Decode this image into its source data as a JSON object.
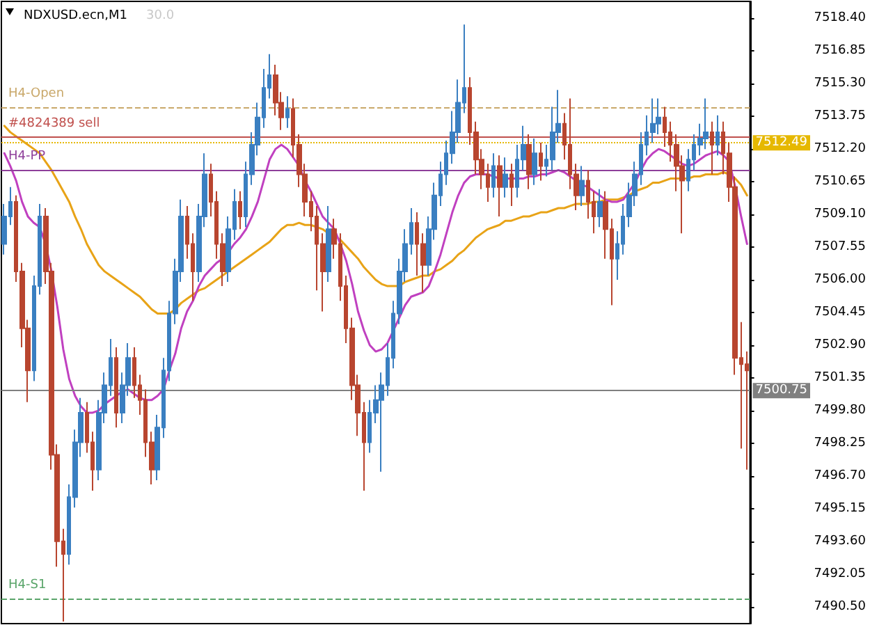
{
  "chart_data": {
    "type": "candlestick",
    "title": "NDXUSD.ecn,M1",
    "subtitle": "30.0",
    "categories": [
      null,
      null,
      null,
      null,
      null,
      null,
      null,
      null,
      null,
      null,
      null,
      null,
      null,
      null,
      null,
      null,
      null,
      null,
      null,
      null,
      null,
      null,
      null,
      null,
      null,
      null,
      null,
      null,
      null,
      null,
      null,
      null,
      null,
      null,
      null,
      null,
      null,
      null,
      null,
      null,
      null,
      null,
      null,
      null,
      null,
      null,
      null,
      null,
      null,
      null,
      null,
      null,
      null,
      null,
      null,
      null,
      null,
      null,
      null,
      null,
      null,
      null,
      null,
      null,
      null,
      null,
      null,
      null,
      null,
      null,
      null,
      null,
      null,
      null,
      null,
      null,
      null,
      null,
      null,
      null,
      null,
      null,
      null,
      null,
      null,
      null,
      null,
      null,
      null,
      null,
      null,
      null,
      null,
      null,
      null,
      null,
      null,
      null,
      null,
      null,
      null,
      null,
      null,
      null,
      null,
      null,
      null,
      null,
      null,
      null,
      null,
      null,
      null,
      null,
      null,
      null,
      null,
      null,
      null,
      null,
      null,
      null,
      null,
      null,
      null,
      null,
      null
    ],
    "ohlc": [
      [
        7507.7,
        7509.6,
        7507.2,
        7509.0
      ],
      [
        7509.0,
        7510.4,
        7508.6,
        7509.7
      ],
      [
        7509.7,
        7510.0,
        7505.9,
        7506.4
      ],
      [
        7506.4,
        7506.8,
        7502.8,
        7503.7
      ],
      [
        7503.7,
        7504.1,
        7500.2,
        7501.7
      ],
      [
        7501.7,
        7506.2,
        7501.2,
        7505.7
      ],
      [
        7505.7,
        7509.6,
        7505.3,
        7509.0
      ],
      [
        7509.0,
        7509.4,
        7505.8,
        7506.4
      ],
      [
        7506.4,
        7506.8,
        7497.0,
        7497.7
      ],
      [
        7497.7,
        7498.2,
        7492.4,
        7493.6
      ],
      [
        7493.6,
        7494.2,
        7489.8,
        7493.0
      ],
      [
        7493.0,
        7496.3,
        7492.5,
        7495.7
      ],
      [
        7495.7,
        7498.9,
        7495.2,
        7498.3
      ],
      [
        7498.3,
        7500.4,
        7497.6,
        7499.7
      ],
      [
        7499.7,
        7500.2,
        7497.8,
        7498.3
      ],
      [
        7498.3,
        7498.8,
        7496.0,
        7497.0
      ],
      [
        7497.0,
        7500.3,
        7496.5,
        7499.7
      ],
      [
        7499.7,
        7501.6,
        7499.2,
        7501.0
      ],
      [
        7501.0,
        7503.2,
        7500.5,
        7502.3
      ],
      [
        7502.3,
        7502.8,
        7499.0,
        7499.7
      ],
      [
        7499.7,
        7501.6,
        7499.2,
        7501.0
      ],
      [
        7501.0,
        7503.0,
        7500.5,
        7502.3
      ],
      [
        7502.3,
        7502.8,
        7500.4,
        7501.0
      ],
      [
        7501.0,
        7501.5,
        7499.6,
        7500.3
      ],
      [
        7500.3,
        7500.8,
        7497.6,
        7498.3
      ],
      [
        7498.3,
        7498.8,
        7496.3,
        7497.0
      ],
      [
        7497.0,
        7499.6,
        7496.5,
        7499.0
      ],
      [
        7499.0,
        7502.3,
        7498.5,
        7501.7
      ],
      [
        7501.7,
        7505.0,
        7501.2,
        7504.4
      ],
      [
        7504.4,
        7507.0,
        7503.9,
        7506.4
      ],
      [
        7506.4,
        7509.8,
        7505.9,
        7509.0
      ],
      [
        7509.0,
        7509.5,
        7507.0,
        7507.7
      ],
      [
        7507.7,
        7508.2,
        7505.0,
        7506.4
      ],
      [
        7506.4,
        7509.6,
        7505.9,
        7509.0
      ],
      [
        7509.0,
        7512.0,
        7508.5,
        7511.0
      ],
      [
        7511.0,
        7511.5,
        7509.0,
        7509.7
      ],
      [
        7509.7,
        7510.2,
        7507.0,
        7507.7
      ],
      [
        7507.7,
        7508.2,
        7505.7,
        7506.4
      ],
      [
        7506.4,
        7509.0,
        7505.9,
        7508.4
      ],
      [
        7508.4,
        7510.3,
        7507.9,
        7509.7
      ],
      [
        7509.7,
        7510.2,
        7508.4,
        7509.0
      ],
      [
        7509.0,
        7511.6,
        7508.5,
        7511.0
      ],
      [
        7511.0,
        7513.0,
        7510.5,
        7512.4
      ],
      [
        7512.4,
        7514.4,
        7511.9,
        7513.7
      ],
      [
        7513.7,
        7516.0,
        7513.2,
        7515.1
      ],
      [
        7515.1,
        7516.7,
        7514.6,
        7515.7
      ],
      [
        7515.7,
        7516.2,
        7513.8,
        7514.4
      ],
      [
        7514.4,
        7514.9,
        7513.1,
        7513.7
      ],
      [
        7513.7,
        7514.7,
        7513.2,
        7514.1
      ],
      [
        7514.1,
        7514.6,
        7511.8,
        7512.4
      ],
      [
        7512.4,
        7512.9,
        7510.4,
        7511.0
      ],
      [
        7511.0,
        7511.5,
        7509.0,
        7509.7
      ],
      [
        7509.7,
        7510.2,
        7508.3,
        7509.0
      ],
      [
        7509.0,
        7509.5,
        7505.5,
        7507.7
      ],
      [
        7507.7,
        7508.2,
        7504.5,
        7506.4
      ],
      [
        7506.4,
        7509.5,
        7505.9,
        7508.4
      ],
      [
        7508.4,
        7508.9,
        7507.0,
        7507.7
      ],
      [
        7507.7,
        7508.2,
        7505.0,
        7505.7
      ],
      [
        7505.7,
        7506.2,
        7503.0,
        7503.7
      ],
      [
        7503.7,
        7504.2,
        7500.3,
        7501.0
      ],
      [
        7501.0,
        7501.5,
        7498.6,
        7499.7
      ],
      [
        7499.7,
        7500.2,
        7496.0,
        7498.3
      ],
      [
        7498.3,
        7500.3,
        7497.8,
        7499.7
      ],
      [
        7499.7,
        7501.0,
        7499.2,
        7500.3
      ],
      [
        7500.3,
        7501.6,
        7496.9,
        7501.0
      ],
      [
        7501.0,
        7503.0,
        7500.5,
        7502.3
      ],
      [
        7502.3,
        7505.0,
        7501.8,
        7504.4
      ],
      [
        7504.4,
        7507.0,
        7503.9,
        7506.4
      ],
      [
        7506.4,
        7508.4,
        7505.9,
        7507.7
      ],
      [
        7507.7,
        7509.4,
        7507.2,
        7508.7
      ],
      [
        7508.7,
        7509.2,
        7506.2,
        7507.7
      ],
      [
        7507.7,
        7508.2,
        7505.4,
        7506.7
      ],
      [
        7506.7,
        7509.0,
        7506.2,
        7508.4
      ],
      [
        7508.4,
        7510.6,
        7507.9,
        7510.0
      ],
      [
        7510.0,
        7511.6,
        7509.5,
        7511.0
      ],
      [
        7511.0,
        7512.6,
        7510.5,
        7512.0
      ],
      [
        7512.0,
        7514.0,
        7511.5,
        7513.0
      ],
      [
        7513.0,
        7515.5,
        7512.5,
        7514.4
      ],
      [
        7514.4,
        7518.1,
        7513.9,
        7515.1
      ],
      [
        7515.1,
        7515.6,
        7512.4,
        7513.0
      ],
      [
        7513.0,
        7513.5,
        7511.0,
        7511.7
      ],
      [
        7511.7,
        7512.2,
        7510.3,
        7511.0
      ],
      [
        7511.0,
        7511.5,
        7509.7,
        7510.4
      ],
      [
        7510.4,
        7512.0,
        7509.9,
        7511.4
      ],
      [
        7511.4,
        7511.9,
        7509.0,
        7510.4
      ],
      [
        7510.4,
        7511.8,
        7509.9,
        7511.0
      ],
      [
        7511.0,
        7511.5,
        7509.5,
        7510.4
      ],
      [
        7510.4,
        7512.4,
        7509.9,
        7511.7
      ],
      [
        7511.7,
        7513.3,
        7511.2,
        7512.4
      ],
      [
        7512.4,
        7512.9,
        7510.3,
        7511.0
      ],
      [
        7511.0,
        7512.7,
        7510.5,
        7512.0
      ],
      [
        7512.0,
        7512.5,
        7510.7,
        7511.4
      ],
      [
        7511.4,
        7512.4,
        7510.9,
        7511.7
      ],
      [
        7511.7,
        7514.2,
        7511.2,
        7513.0
      ],
      [
        7513.0,
        7515.0,
        7512.5,
        7513.4
      ],
      [
        7513.4,
        7513.9,
        7511.7,
        7512.4
      ],
      [
        7512.4,
        7514.6,
        7510.3,
        7511.0
      ],
      [
        7511.0,
        7511.5,
        7509.3,
        7510.0
      ],
      [
        7510.0,
        7511.4,
        7509.5,
        7510.7
      ],
      [
        7510.7,
        7511.2,
        7508.9,
        7509.7
      ],
      [
        7509.7,
        7510.2,
        7508.2,
        7509.0
      ],
      [
        7509.0,
        7510.3,
        7508.5,
        7509.7
      ],
      [
        7509.7,
        7510.2,
        7507.0,
        7508.4
      ],
      [
        7508.4,
        7508.9,
        7504.8,
        7507.0
      ],
      [
        7507.0,
        7508.3,
        7506.0,
        7507.7
      ],
      [
        7507.7,
        7509.6,
        7507.2,
        7509.0
      ],
      [
        7509.0,
        7510.6,
        7508.5,
        7510.0
      ],
      [
        7510.0,
        7511.6,
        7509.5,
        7511.0
      ],
      [
        7511.0,
        7513.0,
        7510.5,
        7512.4
      ],
      [
        7512.4,
        7513.8,
        7511.9,
        7513.0
      ],
      [
        7513.0,
        7514.6,
        7512.5,
        7513.4
      ],
      [
        7513.4,
        7514.6,
        7512.9,
        7513.7
      ],
      [
        7513.7,
        7514.2,
        7512.3,
        7513.0
      ],
      [
        7513.0,
        7513.5,
        7511.6,
        7512.4
      ],
      [
        7512.4,
        7512.9,
        7510.2,
        7511.4
      ],
      [
        7511.4,
        7511.9,
        7508.2,
        7510.7
      ],
      [
        7510.7,
        7512.2,
        7510.2,
        7511.7
      ],
      [
        7511.7,
        7512.9,
        7511.2,
        7512.4
      ],
      [
        7512.4,
        7513.4,
        7511.9,
        7512.7
      ],
      [
        7512.7,
        7514.6,
        7512.2,
        7513.0
      ],
      [
        7513.0,
        7513.5,
        7511.0,
        7512.4
      ],
      [
        7512.4,
        7513.8,
        7511.9,
        7513.0
      ],
      [
        7513.0,
        7513.5,
        7511.0,
        7512.0
      ],
      [
        7512.0,
        7512.5,
        7509.7,
        7510.4
      ],
      [
        7510.4,
        7510.9,
        7501.5,
        7502.3
      ],
      [
        7502.3,
        7504.0,
        7498.0,
        7502.0
      ],
      [
        7502.0,
        7502.6,
        7497.0,
        7501.7
      ]
    ],
    "colors": [
      "#3a7fc1",
      "#3a7fc1",
      "#b8452f",
      "#b8452f",
      "#b8452f",
      "#3a7fc1",
      "#3a7fc1",
      "#b8452f",
      "#b8452f",
      "#b8452f",
      "#b8452f",
      "#3a7fc1",
      "#3a7fc1",
      "#3a7fc1",
      "#b8452f",
      "#b8452f",
      "#3a7fc1",
      "#3a7fc1",
      "#3a7fc1",
      "#b8452f",
      "#3a7fc1",
      "#3a7fc1",
      "#b8452f",
      "#b8452f",
      "#b8452f",
      "#b8452f",
      "#3a7fc1",
      "#3a7fc1",
      "#3a7fc1",
      "#3a7fc1",
      "#3a7fc1",
      "#b8452f",
      "#b8452f",
      "#3a7fc1",
      "#3a7fc1",
      "#b8452f",
      "#b8452f",
      "#b8452f",
      "#3a7fc1",
      "#3a7fc1",
      "#b8452f",
      "#3a7fc1",
      "#3a7fc1",
      "#3a7fc1",
      "#3a7fc1",
      "#3a7fc1",
      "#b8452f",
      "#b8452f",
      "#3a7fc1",
      "#b8452f",
      "#b8452f",
      "#b8452f",
      "#b8452f",
      "#b8452f",
      "#b8452f",
      "#3a7fc1",
      "#b8452f",
      "#b8452f",
      "#b8452f",
      "#b8452f",
      "#b8452f",
      "#b8452f",
      "#3a7fc1",
      "#3a7fc1",
      "#3a7fc1",
      "#3a7fc1",
      "#3a7fc1",
      "#3a7fc1",
      "#3a7fc1",
      "#3a7fc1",
      "#b8452f",
      "#b8452f",
      "#3a7fc1",
      "#3a7fc1",
      "#3a7fc1",
      "#3a7fc1",
      "#3a7fc1",
      "#3a7fc1",
      "#3a7fc1",
      "#b8452f",
      "#b8452f",
      "#b8452f",
      "#b8452f",
      "#3a7fc1",
      "#b8452f",
      "#3a7fc1",
      "#b8452f",
      "#3a7fc1",
      "#3a7fc1",
      "#b8452f",
      "#3a7fc1",
      "#b8452f",
      "#3a7fc1",
      "#3a7fc1",
      "#3a7fc1",
      "#b8452f",
      "#b8452f",
      "#b8452f",
      "#3a7fc1",
      "#b8452f",
      "#b8452f",
      "#3a7fc1",
      "#b8452f",
      "#b8452f",
      "#3a7fc1",
      "#3a7fc1",
      "#3a7fc1",
      "#3a7fc1",
      "#3a7fc1",
      "#3a7fc1",
      "#3a7fc1",
      "#3a7fc1",
      "#b8452f",
      "#b8452f",
      "#b8452f",
      "#b8452f",
      "#3a7fc1",
      "#3a7fc1",
      "#3a7fc1",
      "#3a7fc1",
      "#b8452f",
      "#3a7fc1",
      "#b8452f",
      "#b8452f",
      "#b8452f",
      "#b8452f",
      "#b8452f"
    ],
    "series": [
      {
        "type": "line",
        "color": "#e8a317",
        "values": [
          7513.3,
          7513.0,
          7512.8,
          7512.6,
          7512.4,
          7512.2,
          7512.0,
          7511.6,
          7511.2,
          7510.7,
          7510.2,
          7509.7,
          7509.0,
          7508.4,
          7507.7,
          7507.2,
          7506.7,
          7506.4,
          7506.2,
          7506.0,
          7505.8,
          7505.6,
          7505.4,
          7505.2,
          7504.9,
          7504.6,
          7504.4,
          7504.4,
          7504.4,
          7504.6,
          7504.9,
          7505.1,
          7505.3,
          7505.5,
          7505.6,
          7505.8,
          7506.0,
          7506.2,
          7506.4,
          7506.6,
          7506.8,
          7507.0,
          7507.2,
          7507.4,
          7507.6,
          7507.8,
          7508.1,
          7508.4,
          7508.6,
          7508.6,
          7508.7,
          7508.6,
          7508.6,
          7508.5,
          7508.4,
          7508.2,
          7508.1,
          7507.9,
          7507.6,
          7507.3,
          7507.0,
          7506.6,
          7506.3,
          7506.0,
          7505.8,
          7505.7,
          7505.7,
          7505.7,
          7505.9,
          7506.0,
          7506.1,
          7506.2,
          7506.2,
          7506.4,
          7506.5,
          7506.7,
          7506.9,
          7507.2,
          7507.4,
          7507.7,
          7508.0,
          7508.2,
          7508.4,
          7508.5,
          7508.6,
          7508.8,
          7508.8,
          7508.9,
          7509.0,
          7509.0,
          7509.1,
          7509.2,
          7509.2,
          7509.3,
          7509.4,
          7509.4,
          7509.5,
          7509.6,
          7509.6,
          7509.6,
          7509.7,
          7509.7,
          7509.8,
          7509.8,
          7509.8,
          7509.9,
          7510.0,
          7510.2,
          7510.3,
          7510.4,
          7510.6,
          7510.6,
          7510.7,
          7510.8,
          7510.8,
          7510.8,
          7510.8,
          7510.9,
          7510.9,
          7511.0,
          7511.0,
          7511.0,
          7511.1,
          7511.0,
          7510.8,
          7510.5,
          7510.0
        ]
      },
      {
        "type": "line",
        "color": "#c040c0",
        "values": [
          7512.0,
          7511.4,
          7510.7,
          7509.7,
          7509.0,
          7508.7,
          7508.5,
          7507.7,
          7506.4,
          7504.7,
          7502.7,
          7501.3,
          7500.5,
          7500.0,
          7499.7,
          7499.7,
          7499.8,
          7500.1,
          7500.3,
          7500.5,
          7500.7,
          7500.8,
          7500.6,
          7500.4,
          7500.3,
          7500.3,
          7500.5,
          7500.8,
          7501.7,
          7502.5,
          7503.7,
          7504.5,
          7505.0,
          7505.7,
          7506.2,
          7506.5,
          7506.8,
          7507.0,
          7507.3,
          7507.7,
          7508.0,
          7508.4,
          7509.0,
          7509.7,
          7510.7,
          7511.7,
          7512.2,
          7512.4,
          7512.2,
          7511.8,
          7511.4,
          7510.7,
          7510.2,
          7509.6,
          7509.0,
          7508.7,
          7508.4,
          7507.7,
          7506.9,
          7505.8,
          7504.5,
          7503.6,
          7502.9,
          7502.6,
          7502.7,
          7503.0,
          7503.6,
          7504.2,
          7504.8,
          7505.2,
          7505.3,
          7505.4,
          7505.7,
          7506.4,
          7507.2,
          7508.2,
          7509.2,
          7510.0,
          7510.6,
          7510.9,
          7511.0,
          7511.0,
          7511.0,
          7510.9,
          7510.8,
          7510.8,
          7510.8,
          7510.8,
          7510.8,
          7510.9,
          7510.9,
          7511.0,
          7511.0,
          7511.1,
          7511.2,
          7511.1,
          7510.9,
          7510.7,
          7510.5,
          7510.4,
          7510.2,
          7510.0,
          7509.8,
          7509.7,
          7509.7,
          7509.8,
          7510.2,
          7510.6,
          7511.2,
          7511.7,
          7512.0,
          7512.2,
          7512.1,
          7511.9,
          7511.7,
          7511.5,
          7511.4,
          7511.5,
          7511.7,
          7511.9,
          7512.0,
          7512.1,
          7511.9,
          7511.6,
          7510.4,
          7509.0,
          7507.7
        ]
      }
    ],
    "ylim": [
      7489.7,
      7519.2
    ],
    "yticks": [
      {
        "value": 7490.5,
        "label": "7490.50"
      },
      {
        "value": 7492.05,
        "label": "7492.05"
      },
      {
        "value": 7493.6,
        "label": "7493.60"
      },
      {
        "value": 7495.15,
        "label": "7495.15"
      },
      {
        "value": 7496.7,
        "label": "7496.70"
      },
      {
        "value": 7498.25,
        "label": "7498.25"
      },
      {
        "value": 7499.8,
        "label": "7499.80"
      },
      {
        "value": 7501.35,
        "label": "7501.35"
      },
      {
        "value": 7502.9,
        "label": "7502.90"
      },
      {
        "value": 7504.45,
        "label": "7504.45"
      },
      {
        "value": 7506.0,
        "label": "7506.00"
      },
      {
        "value": 7507.55,
        "label": "7507.55"
      },
      {
        "value": 7509.1,
        "label": "7509.10"
      },
      {
        "value": 7510.65,
        "label": "7510.65"
      },
      {
        "value": 7512.2,
        "label": "7512.20"
      },
      {
        "value": 7513.75,
        "label": "7513.75"
      },
      {
        "value": 7515.3,
        "label": "7515.30"
      },
      {
        "value": 7516.85,
        "label": "7516.85"
      },
      {
        "value": 7518.4,
        "label": "7518.40"
      }
    ],
    "ref_lines": [
      {
        "axis": "y",
        "value": 7514.2,
        "label": "H4-Open",
        "color": "#c9a86a",
        "line_style": "dashed"
      },
      {
        "axis": "y",
        "value": 7512.78,
        "label": "#4824389 sell",
        "color": "#c0504d",
        "line_style": "solid"
      },
      {
        "axis": "y",
        "value": 7512.49,
        "label": "7512.49",
        "color": "#e6b800",
        "line_style": "dotted"
      },
      {
        "axis": "y",
        "value": 7511.2,
        "label": "H4-PP",
        "color": "#8e3f9a",
        "line_style": "solid"
      },
      {
        "axis": "y",
        "value": 7500.75,
        "label": "7500.75",
        "color": "#808080",
        "line_style": "solid"
      },
      {
        "axis": "y",
        "value": 7490.9,
        "label": "H4-S1",
        "color": "#5aa56a",
        "line_style": "dashed"
      }
    ],
    "tick_labels": "y",
    "marker": "none"
  }
}
